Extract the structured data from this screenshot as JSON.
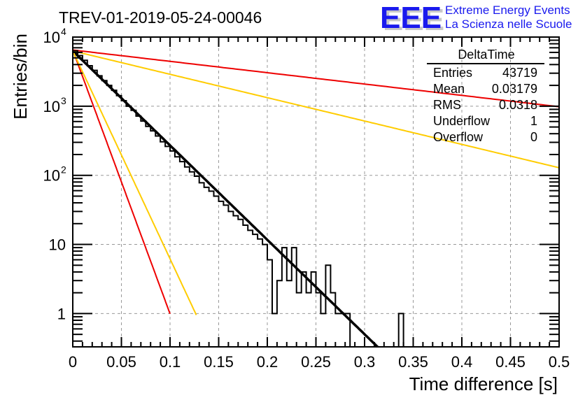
{
  "chart_data": {
    "type": "histogram",
    "title": "TREV-01-2019-05-24-00046",
    "xlabel": "Time difference [s]",
    "ylabel": "Entries/bin",
    "xlim": [
      0,
      0.5
    ],
    "ylim": [
      0.33,
      10000
    ],
    "yscale": "log",
    "grid": true,
    "x_ticks": [
      "0",
      "0.05",
      "0.1",
      "0.15",
      "0.2",
      "0.25",
      "0.3",
      "0.35",
      "0.4",
      "0.45",
      "0.5"
    ],
    "x_tick_values": [
      0,
      0.05,
      0.1,
      0.15,
      0.2,
      0.25,
      0.3,
      0.35,
      0.4,
      0.45,
      0.5
    ],
    "y_ticks": [
      {
        "value": 1,
        "base": "1",
        "exp": ""
      },
      {
        "value": 10,
        "base": "10",
        "exp": ""
      },
      {
        "value": 100,
        "base": "10",
        "exp": "2"
      },
      {
        "value": 1000,
        "base": "10",
        "exp": "3"
      },
      {
        "value": 10000,
        "base": "10",
        "exp": "4"
      }
    ],
    "histogram": {
      "name": "DeltaTime",
      "bin_width": 0.005,
      "bin_start": 0,
      "counts": [
        6300,
        5400,
        4600,
        3850,
        3300,
        2750,
        2350,
        2000,
        1700,
        1420,
        1200,
        1000,
        870,
        720,
        610,
        510,
        440,
        370,
        305,
        262,
        225,
        185,
        158,
        132,
        112,
        97,
        78,
        67,
        59,
        50,
        42,
        37,
        30,
        26,
        23,
        19,
        16,
        14,
        12,
        10,
        6,
        1,
        3,
        9,
        3,
        9,
        2,
        4,
        2,
        4,
        2,
        1,
        5,
        2,
        1,
        1,
        1,
        0,
        0,
        0,
        0,
        0,
        0,
        0,
        0,
        0,
        0,
        1,
        0,
        0,
        0,
        0,
        0,
        0,
        0,
        0,
        0,
        0,
        0,
        0,
        0,
        0,
        0,
        0,
        0,
        0,
        0,
        0,
        0,
        0,
        0,
        0,
        0,
        0,
        0,
        0,
        0,
        0,
        0,
        0
      ]
    },
    "fits": [
      {
        "name": "fit",
        "color": "#000000",
        "function": "exp",
        "y0": 6300,
        "tau": 0.03179,
        "x_range": [
          0,
          0.315
        ]
      },
      {
        "name": "red-slow",
        "color": "#ee0000",
        "function": "exp",
        "y0": 6500,
        "tau": 0.2645,
        "x_range": [
          0,
          0.5
        ]
      },
      {
        "name": "yellow-slow",
        "color": "#ffcc00",
        "function": "exp",
        "y0": 6300,
        "tau": 0.1285,
        "x_range": [
          0,
          0.5
        ]
      },
      {
        "name": "red-fast",
        "color": "#ee0000",
        "function": "exp",
        "y0": 6500,
        "tau": 0.01138,
        "x_range": [
          0,
          0.1
        ]
      },
      {
        "name": "yellow-fast",
        "color": "#ffcc00",
        "function": "exp",
        "y0": 6300,
        "tau": 0.01444,
        "x_range": [
          0,
          0.127
        ]
      }
    ],
    "stats_box": {
      "title": "DeltaTime",
      "rows": [
        {
          "label": "Entries",
          "value": "43719"
        },
        {
          "label": "Mean",
          "value": "0.03179"
        },
        {
          "label": "RMS",
          "value": "0.0318"
        },
        {
          "label": "Underflow",
          "value": "1"
        },
        {
          "label": "Overflow",
          "value": "0"
        }
      ]
    },
    "legend": "top-right"
  },
  "logo": {
    "mark": "EEE",
    "line1": "Extreme Energy Events",
    "line2": "La Scienza nelle Scuole",
    "color": "#1a1aee"
  }
}
